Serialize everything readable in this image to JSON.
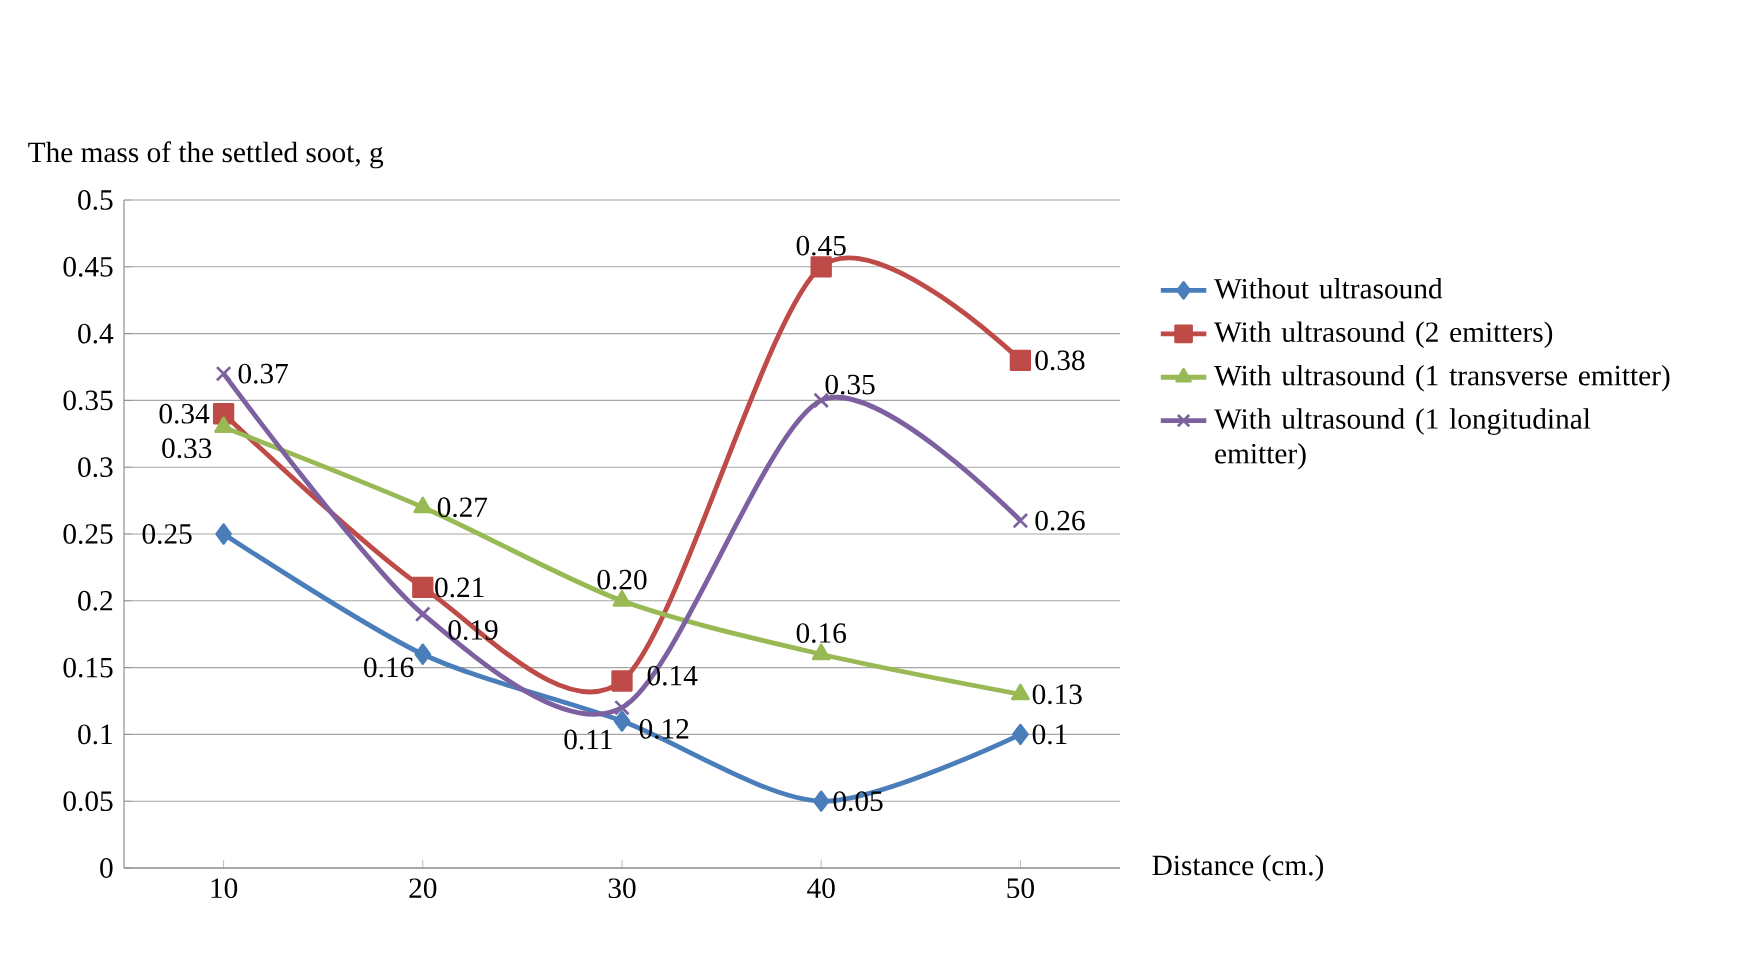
{
  "chart_data": {
    "type": "line",
    "ylabel": "The mass of the settled soot, g",
    "xlabel": "Distance (cm.)",
    "categories": [
      "10",
      "20",
      "30",
      "40",
      "50"
    ],
    "ylim": [
      0,
      0.5
    ],
    "yticks": [
      0,
      {
        "value": 0.05,
        "label": "0.05"
      },
      {
        "value": 0.1,
        "label": "0.1"
      },
      {
        "value": 0.15,
        "label": "0.15"
      },
      {
        "value": 0.2,
        "label": "0.2"
      },
      {
        "value": 0.25,
        "label": "0.25"
      },
      {
        "value": 0.3,
        "label": "0.3"
      },
      {
        "value": 0.35,
        "label": "0.35"
      },
      {
        "value": 0.4,
        "label": "0.4"
      },
      {
        "value": 0.45,
        "label": "0.45"
      },
      {
        "value": 0.5,
        "label": "0.5"
      }
    ],
    "grid": "y",
    "legend": "right",
    "line_style": "solid",
    "series": [
      {
        "name": "Without ultrasound",
        "color": "#4a7ebb",
        "marker": "diamond",
        "values": [
          0.25,
          0.16,
          0.11,
          0.05,
          0.1
        ],
        "value_labels": [
          "0.25",
          "0.16",
          "0.11",
          "0.05",
          "0.1"
        ]
      },
      {
        "name": "With ultrasound (2 emitters)",
        "color": "#be4b48",
        "marker": "square",
        "values": [
          0.34,
          0.21,
          0.14,
          0.45,
          0.38
        ],
        "value_labels": [
          "0.34",
          "0.21",
          "0.14",
          "0.45",
          "0.38"
        ]
      },
      {
        "name": "With ultrasound (1 transverse emitter)",
        "color": "#98b954",
        "marker": "triangle",
        "values": [
          0.33,
          0.27,
          0.2,
          0.16,
          0.13
        ],
        "value_labels": [
          "0.33",
          "0.27",
          "0.20",
          "0.16",
          "0.13"
        ]
      },
      {
        "name": "With ultrasound (1 longitudinal emitter)",
        "color": "#7d60a0",
        "marker": "cross",
        "values": [
          0.37,
          0.19,
          0.12,
          0.35,
          0.26
        ],
        "value_labels": [
          "0.37",
          "0.19",
          "0.12",
          "0.35",
          "0.26"
        ]
      }
    ]
  }
}
